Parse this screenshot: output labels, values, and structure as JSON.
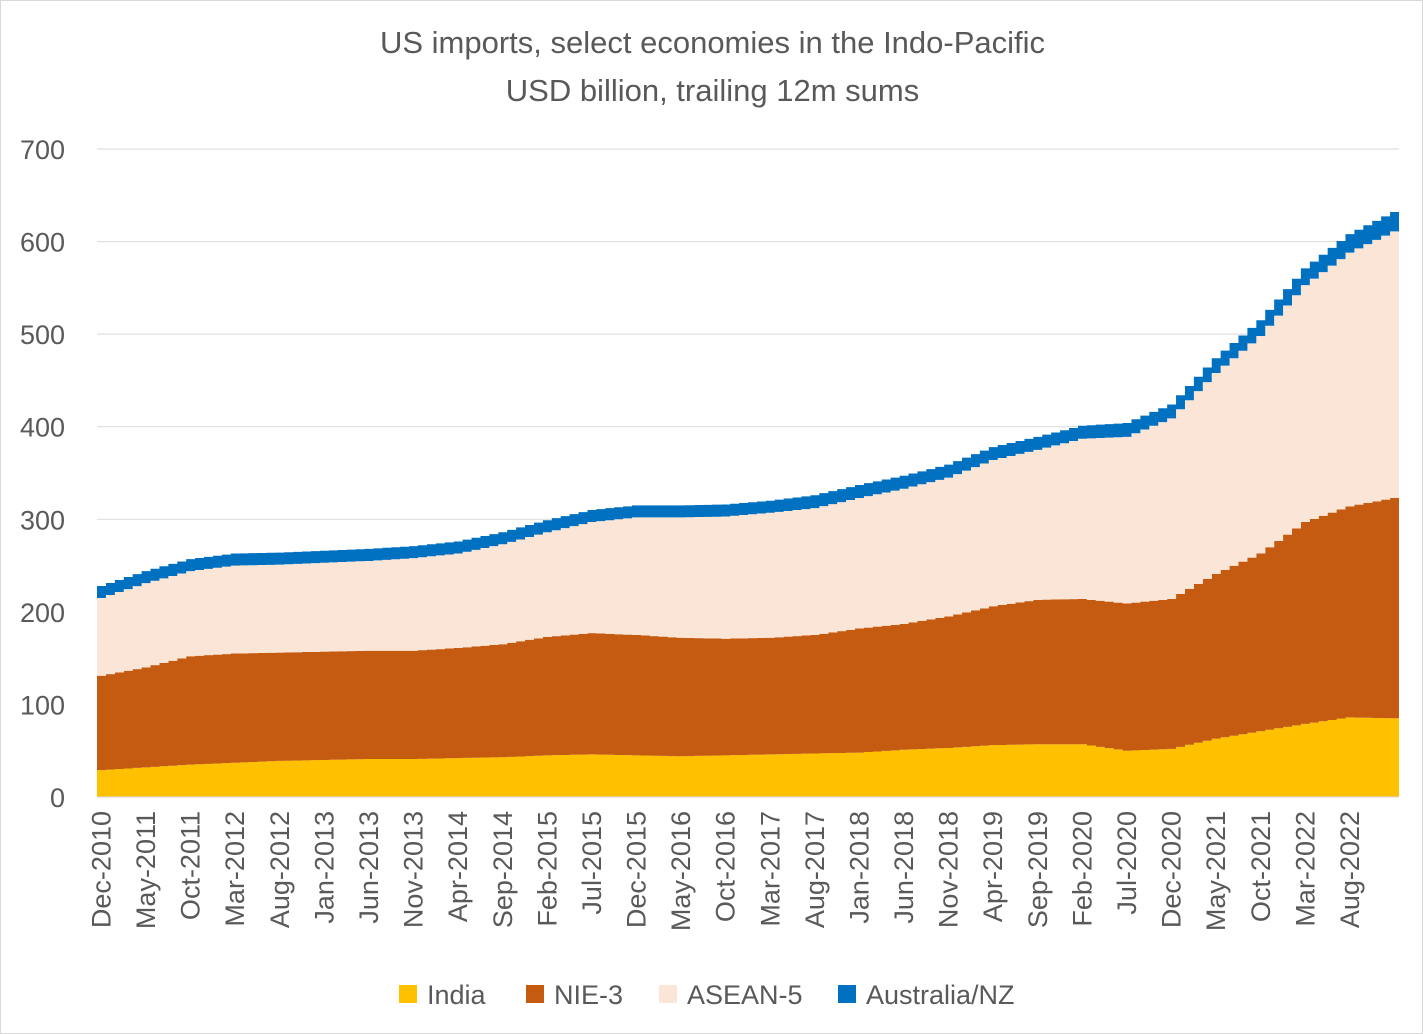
{
  "chart_data": {
    "type": "area",
    "stacked": true,
    "title": "US imports, select economies in the Indo-Pacific",
    "subtitle": "USD billion, trailing 12m sums",
    "xlabel": "",
    "ylabel": "",
    "ylim": [
      0,
      700
    ],
    "yticks": [
      "0",
      "100",
      "200",
      "300",
      "400",
      "500",
      "600",
      "700"
    ],
    "grid": true,
    "legend_position": "bottom",
    "x_start": "Dec-2010",
    "x_end": "Jan-2023",
    "x_step_months": 1,
    "x_tick_labels": [
      "Dec-2010",
      "May-2011",
      "Oct-2011",
      "Mar-2012",
      "Aug-2012",
      "Jan-2013",
      "Jun-2013",
      "Nov-2013",
      "Apr-2014",
      "Sep-2014",
      "Feb-2015",
      "Jul-2015",
      "Dec-2015",
      "May-2016",
      "Oct-2016",
      "Mar-2017",
      "Aug-2017",
      "Jan-2018",
      "Jun-2018",
      "Nov-2018",
      "Apr-2019",
      "Sep-2019",
      "Feb-2020",
      "Jul-2020",
      "Dec-2020",
      "May-2021",
      "Oct-2021",
      "Mar-2022",
      "Aug-2022"
    ],
    "knots_note": "values listed at each labelled month plus Jan-2023",
    "series": [
      {
        "name": "India",
        "color": "#FFC000",
        "values": [
          29,
          32,
          35,
          37,
          39,
          40,
          41,
          41,
          42,
          43,
          45,
          46,
          45,
          44,
          45,
          46,
          47,
          48,
          51,
          53,
          56,
          57,
          57,
          50,
          52,
          63,
          71,
          79,
          86,
          85
        ]
      },
      {
        "name": "NIE-3",
        "color": "#C55A11",
        "values": [
          102,
          108,
          117,
          118,
          117,
          117,
          117,
          117,
          119,
          122,
          128,
          131,
          130,
          128,
          126,
          126,
          128,
          134,
          136,
          142,
          150,
          156,
          157,
          159,
          162,
          178,
          192,
          218,
          228,
          238
        ]
      },
      {
        "name": "ASEAN-5",
        "color": "#FBE5D6",
        "values": [
          84,
          91,
          92,
          95,
          95,
          96,
          97,
          100,
          102,
          108,
          113,
          120,
          127,
          130,
          132,
          135,
          137,
          141,
          146,
          150,
          158,
          162,
          173,
          180,
          195,
          217,
          235,
          256,
          274,
          288
        ]
      },
      {
        "name": "Australia/NZ",
        "color": "#0070C0",
        "values": [
          13,
          13,
          13,
          13,
          13,
          13,
          13,
          13,
          13,
          13,
          13,
          13,
          13,
          13,
          13,
          13,
          14,
          14,
          14,
          14,
          14,
          14,
          14,
          15,
          15,
          16,
          17,
          18,
          20,
          21
        ]
      }
    ]
  }
}
